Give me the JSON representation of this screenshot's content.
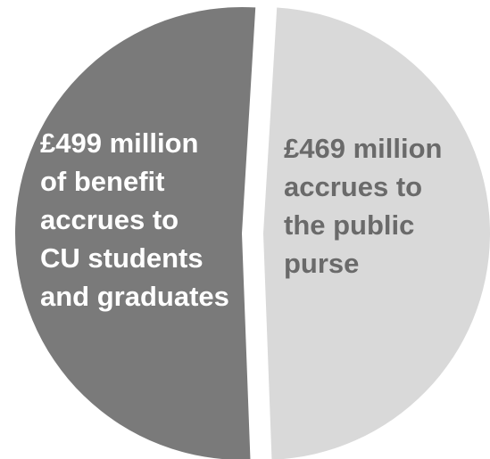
{
  "chart_data": {
    "type": "pie",
    "title": "",
    "slices": [
      {
        "label": "£499 million\nof benefit\naccrues  to\nCU students\nand graduates",
        "value": 499,
        "color": "#7a7a7a",
        "text_color": "#ffffff"
      },
      {
        "label": "£469 million\naccrues to\nthe public\npurse",
        "value": 469,
        "color": "#d9d9d9",
        "text_color": "#6a6a6a"
      }
    ],
    "legend": "none",
    "exploded": true
  }
}
